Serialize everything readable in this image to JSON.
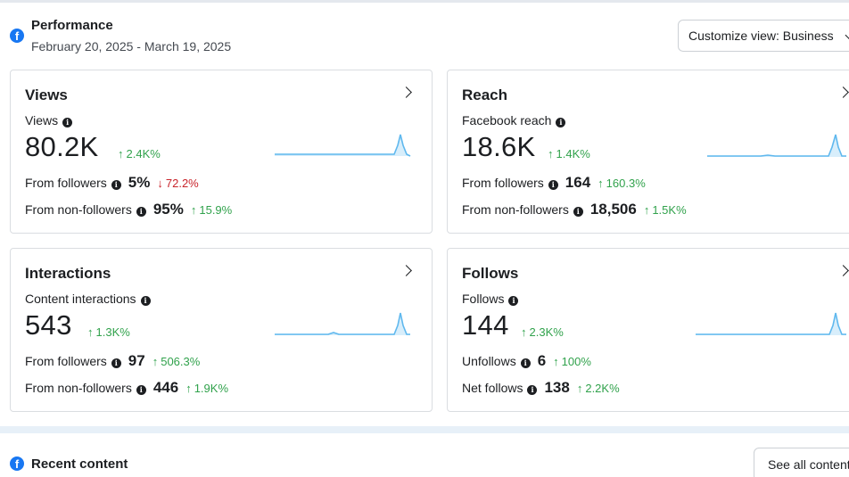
{
  "performance": {
    "title": "Performance",
    "date_range": "February 20, 2025 - March 19, 2025",
    "customize_label": "Customize view: Business"
  },
  "cards": {
    "views": {
      "title": "Views",
      "metric_label": "Views",
      "value": "80.2K",
      "delta": "2.4K%",
      "row1_label": "From followers",
      "row1_value": "5%",
      "row1_delta": "72.2%",
      "row2_label": "From non-followers",
      "row2_value": "95%",
      "row2_delta": "15.9%"
    },
    "reach": {
      "title": "Reach",
      "metric_label": "Facebook reach",
      "value": "18.6K",
      "delta": "1.4K%",
      "row1_label": "From followers",
      "row1_value": "164",
      "row1_delta": "160.3%",
      "row2_label": "From non-followers",
      "row2_value": "18,506",
      "row2_delta": "1.5K%"
    },
    "interactions": {
      "title": "Interactions",
      "metric_label": "Content interactions",
      "value": "543",
      "delta": "1.3K%",
      "row1_label": "From followers",
      "row1_value": "97",
      "row1_delta": "506.3%",
      "row2_label": "From non-followers",
      "row2_value": "446",
      "row2_delta": "1.9K%"
    },
    "follows": {
      "title": "Follows",
      "metric_label": "Follows",
      "value": "144",
      "delta": "2.3K%",
      "row1_label": "Unfollows",
      "row1_value": "6",
      "row1_delta": "100%",
      "row2_label": "Net follows",
      "row2_value": "138",
      "row2_delta": "2.2K%"
    }
  },
  "recent": {
    "title": "Recent content",
    "see_all_label": "See all content"
  },
  "icons": {
    "brand": "facebook-icon",
    "info": "info-icon",
    "up": "arrow-up-icon",
    "down": "arrow-down-icon",
    "chevron": "chevron-right-icon"
  },
  "colors": {
    "brand": "#1877f2",
    "positive": "#31a24c",
    "negative": "#c8242b",
    "sparkline": "#5fb8ee"
  }
}
